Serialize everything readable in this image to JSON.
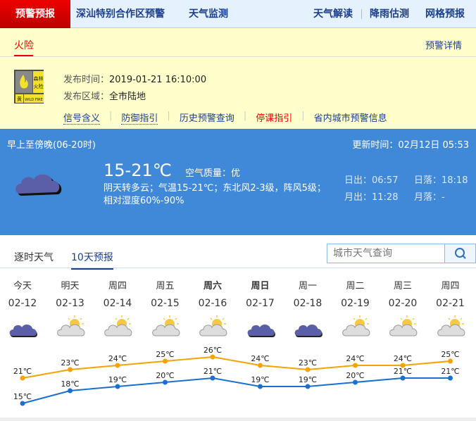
{
  "nav": {
    "active": "预警预报",
    "items": [
      "深汕特别合作区预警",
      "天气监测"
    ],
    "right": [
      "天气解读",
      "降雨估测",
      "网格预报"
    ]
  },
  "warning": {
    "tab": "火险",
    "detail_link": "预警详情",
    "badge_text": [
      "森林",
      "火险",
      "黄",
      "WILD FIRE"
    ],
    "time_label": "发布时间：",
    "time": "2019-01-21 16:10:00",
    "area_label": "发布区域：",
    "area": "全市陆地",
    "links": [
      "信号含义",
      "防御指引",
      "历史预警查询",
      "停课指引",
      "省内城市预警信息"
    ]
  },
  "today": {
    "period": "早上至傍晚(06-20时)",
    "update": "更新时间：02月12日 05:53",
    "temp": "15-21℃",
    "aqi": "空气质量：优",
    "desc": "阴天转多云；气温15-21℃；东北风2-3级，阵风5级；相对湿度60%-90%",
    "sunrise": "日出：06:57",
    "sunset": "日落：18:18",
    "moonrise": "月出：11:28",
    "moonset": "月落：-",
    "icon": "cloudy-icon"
  },
  "tabs": [
    "逐时天气",
    "10天预报"
  ],
  "search": {
    "placeholder": "城市天气查询"
  },
  "colors": {
    "high": "#f5a300",
    "low": "#1a6fd0",
    "blue_bg": "#4089d9"
  },
  "chart_data": {
    "type": "line",
    "categories": [
      "02-12",
      "02-13",
      "02-14",
      "02-15",
      "02-16",
      "02-17",
      "02-18",
      "02-19",
      "02-20",
      "02-21"
    ],
    "weekdays": [
      "今天",
      "明天",
      "周四",
      "周五",
      "周六",
      "周日",
      "周一",
      "周二",
      "周三",
      "周四"
    ],
    "icons": [
      "cloudy",
      "partly-cloudy",
      "partly-cloudy",
      "partly-cloudy",
      "partly-cloudy",
      "cloudy",
      "cloudy",
      "partly-cloudy",
      "partly-cloudy",
      "partly-cloudy"
    ],
    "series": [
      {
        "values": [
          21,
          23,
          24,
          25,
          26,
          24,
          23,
          24,
          24,
          25
        ]
      },
      {
        "values": [
          15,
          18,
          19,
          20,
          21,
          19,
          19,
          20,
          21,
          21
        ]
      }
    ],
    "unit": "℃"
  }
}
